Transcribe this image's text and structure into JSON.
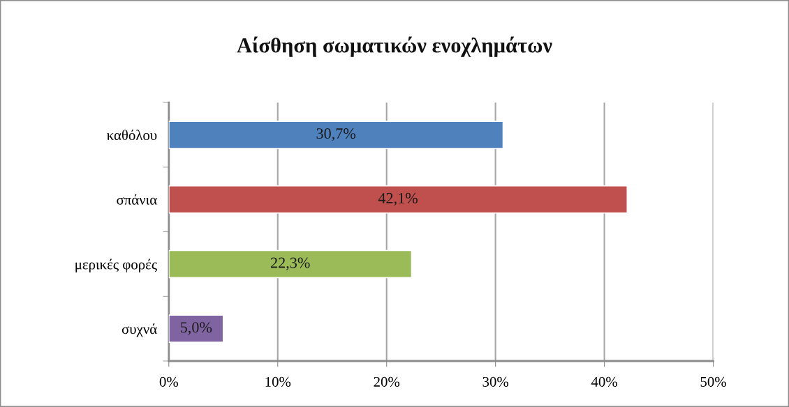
{
  "chart_data": {
    "type": "bar",
    "orientation": "horizontal",
    "title": "Αίσθηση σωματικών ενοχλημάτων",
    "categories": [
      "καθόλου",
      "σπάνια",
      "μερικές φορές",
      "συχνά"
    ],
    "values": [
      30.7,
      42.1,
      22.3,
      5.0
    ],
    "colors": [
      "#4f81bd",
      "#c0504d",
      "#9bbb59",
      "#8064a2"
    ],
    "value_labels": [
      "30,7%",
      "42,1%",
      "22,3%",
      "5,0%"
    ],
    "xlim": [
      0,
      50
    ],
    "xticks": [
      {
        "value": 0,
        "label": "0%"
      },
      {
        "value": 10,
        "label": "10%"
      },
      {
        "value": 20,
        "label": "20%"
      },
      {
        "value": 30,
        "label": "30%"
      },
      {
        "value": 40,
        "label": "40%"
      },
      {
        "value": 50,
        "label": "50%"
      }
    ],
    "grid": "x"
  }
}
